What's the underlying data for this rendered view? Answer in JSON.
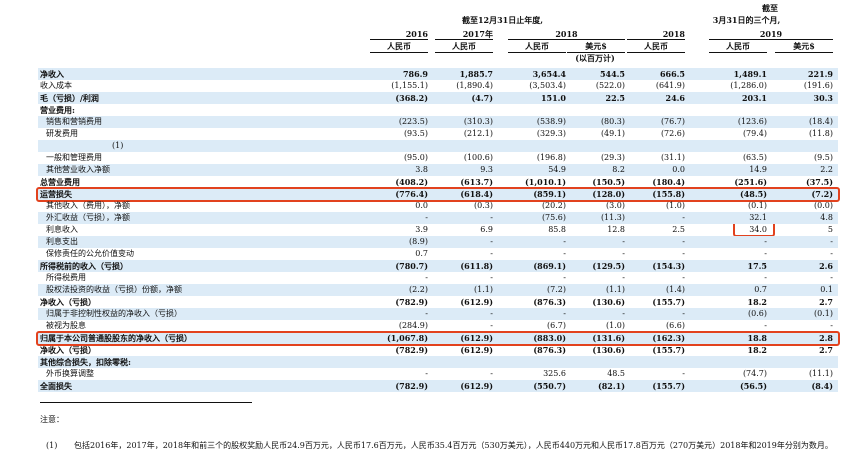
{
  "header": {
    "top": "截至",
    "annual": "截至12月31日止年度,",
    "quarter": "3月31日的三个月,",
    "years": [
      "2016",
      "2017年",
      "2018",
      "2018",
      "2019"
    ],
    "currencies": [
      "人民币",
      "人民币",
      "人民币",
      "美元$",
      "人民币",
      "人民币",
      "美元$"
    ],
    "unit": "(以百万计)"
  },
  "rows": [
    {
      "label": "净收入",
      "bold": true,
      "values": [
        "786.9",
        "1,885.7",
        "3,654.4",
        "544.5",
        "666.5",
        "1,489.1",
        "221.9"
      ]
    },
    {
      "label": "收入成本",
      "values": [
        "(1,155.1)",
        "(1,890.4)",
        "(3,503.4)",
        "(522.0)",
        "(641.9)",
        "(1,286.0)",
        "(191.6)"
      ]
    },
    {
      "label": "毛（亏损）/利润",
      "bold": true,
      "values": [
        "(368.2)",
        "(4.7)",
        "151.0",
        "22.5",
        "24.6",
        "203.1",
        "30.3"
      ]
    },
    {
      "label": "营业费用:",
      "bold": true,
      "values": []
    },
    {
      "label": "销售和营销费用",
      "indent": true,
      "values": [
        "(223.5)",
        "(310.3)",
        "(538.9)",
        "(80.3)",
        "(76.7)",
        "(123.6)",
        "(18.4)"
      ]
    },
    {
      "label": "研发费用",
      "indent": true,
      "values": [
        "(93.5)",
        "(212.1)",
        "(329.3)",
        "(49.1)",
        "(72.6)",
        "(79.4)",
        "(11.8)"
      ]
    },
    {
      "label": "(1)",
      "note": true,
      "values": []
    },
    {
      "label": "一般和管理费用",
      "indent": true,
      "values": [
        "(95.0)",
        "(100.6)",
        "(196.8)",
        "(29.3)",
        "(31.1)",
        "(63.5)",
        "(9.5)"
      ]
    },
    {
      "label": "其他营业收入净额",
      "indent": true,
      "values": [
        "3.8",
        "9.3",
        "54.9",
        "8.2",
        "0.0",
        "14.9",
        "2.2"
      ]
    },
    {
      "label": "总营业费用",
      "bold": true,
      "values": [
        "(408.2)",
        "(613.7)",
        "(1,010.1)",
        "(150.5)",
        "(180.4)",
        "(251.6)",
        "(37.5)"
      ]
    },
    {
      "label": "运营损失",
      "bold": true,
      "highlight": true,
      "values": [
        "(776.4)",
        "(618.4)",
        "(859.1)",
        "(128.0)",
        "(155.8)",
        "(48.5)",
        "(7.2)"
      ]
    },
    {
      "label": "其他收入（费用），净额",
      "indent": true,
      "values": [
        "0.0",
        "(0.3)",
        "(20.2)",
        "(3.0)",
        "(1.0)",
        "(0.1)",
        "(0.0)"
      ]
    },
    {
      "label": "外汇收益（亏损），净额",
      "indent": true,
      "values": [
        "-",
        "-",
        "(75.6)",
        "(11.3)",
        "-",
        "32.1",
        "4.8"
      ]
    },
    {
      "label": "利息收入",
      "indent": true,
      "values": [
        "3.9",
        "6.9",
        "85.8",
        "12.8",
        "2.5",
        "34.0",
        "5"
      ]
    },
    {
      "label": "利息支出",
      "indent": true,
      "values": [
        "(8.9)",
        "-",
        "-",
        "-",
        "-",
        "-",
        "-"
      ]
    },
    {
      "label": "保修责任的公允价值变动",
      "indent": true,
      "values": [
        "0.7",
        "-",
        "-",
        "-",
        "-",
        "-",
        "-"
      ]
    },
    {
      "label": "所得税前的收入（亏损）",
      "bold": true,
      "values": [
        "(780.7)",
        "(611.8)",
        "(869.1)",
        "(129.5)",
        "(154.3)",
        "17.5",
        "2.6"
      ]
    },
    {
      "label": "所得税费用",
      "indent": true,
      "values": [
        "-",
        "-",
        "-",
        "-",
        "-",
        "-",
        "-"
      ]
    },
    {
      "label": "股权法投资的收益（亏损）份额，净额",
      "indent": true,
      "values": [
        "(2.2)",
        "(1.1)",
        "(7.2)",
        "(1.1)",
        "(1.4)",
        "0.7",
        "0.1"
      ]
    },
    {
      "label": "净收入（亏损）",
      "bold": true,
      "values": [
        "(782.9)",
        "(612.9)",
        "(876.3)",
        "(130.6)",
        "(155.7)",
        "18.2",
        "2.7"
      ]
    },
    {
      "label": "归属于非控制性权益的净收入（亏损）",
      "indent": true,
      "values": [
        "-",
        "-",
        "-",
        "-",
        "-",
        "(0.6)",
        "(0.1)"
      ]
    },
    {
      "label": "被视为股息",
      "indent": true,
      "values": [
        "(284.9)",
        "-",
        "(6.7)",
        "(1.0)",
        "(6.6)",
        "-",
        "-"
      ]
    },
    {
      "label": "归属于本公司普通股股东的净收入（亏损）",
      "bold": true,
      "highlight": true,
      "values": [
        "(1,067.8)",
        "(612.9)",
        "(883.0)",
        "(131.6)",
        "(162.3)",
        "18.8",
        "2.8"
      ]
    },
    {
      "label": "净收入（亏损）",
      "bold": true,
      "values": [
        "(782.9)",
        "(612.9)",
        "(876.3)",
        "(130.6)",
        "(155.7)",
        "18.2",
        "2.7"
      ]
    },
    {
      "label": "其他综合损失，扣除零税:",
      "bold": true,
      "values": []
    },
    {
      "label": "外币换算调整",
      "indent": true,
      "values": [
        "-",
        "-",
        "325.6",
        "48.5",
        "-",
        "(74.7)",
        "(11.1)"
      ]
    },
    {
      "label": "全面损失",
      "bold": true,
      "values": [
        "(782.9)",
        "(612.9)",
        "(550.7)",
        "(82.1)",
        "(155.7)",
        "(56.5)",
        "(8.4)"
      ]
    }
  ],
  "footnotes": {
    "title": "注意：",
    "marker": "(1)",
    "text": "包括2016年，2017年，2018年和前三个的股权奖励人民币24.9百万元，人民币17.6百万元，人民币35.4百万元（530万美元），人民币440万元和人民币17.8百万元（270万美元）2018年和2019年分别为数月。"
  }
}
